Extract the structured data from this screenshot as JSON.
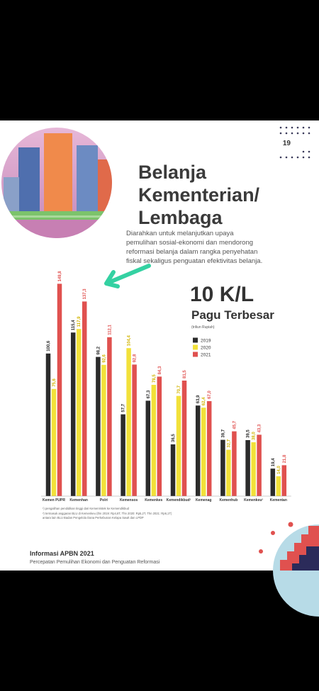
{
  "page": {
    "page_number": "19",
    "title_lines": [
      "Belanja",
      "Kementerian/",
      "Lembaga"
    ],
    "description_lines": [
      "Diarahkan untuk melanjutkan upaya",
      "pemulihan sosial-ekonomi dan mendorong",
      "reformasi belanja dalam rangka penyehatan",
      "fiskal sekaligus penguatan efektivitas belanja."
    ],
    "footnotes": [
      "¹) pengalihan pendidikan tinggi dari Kemenristek ke Kemendikbud",
      "²) termasuk anggaran BLU di Kemenkeu (thn 2019: Rp4,6T, Thn 2020: Rp5,2T, Thn 2021: Rp6,1T)",
      "antara lain BLU Badan Pengelola Dana Perkebunan Kelapa Sawit dan LPDP"
    ],
    "footer_title": "Informasi APBN 2021",
    "footer_subtitle": "Percepatan Pemulihan Ekonomi dan Penguatan Reformasi"
  },
  "chart_data": {
    "type": "bar",
    "title": "10 K/L",
    "subtitle": "Pagu Terbesar",
    "unit": "(triliun Rupiah)",
    "categories": [
      "Kemen PUPR",
      "Kemenhan",
      "Polri",
      "Kemensos",
      "Kemenkes",
      "Kemendikbud¹",
      "Kemenag",
      "Kemenhub",
      "Kemenkeu²",
      "Kementan"
    ],
    "series": [
      {
        "name": "2019",
        "color": "#2b2b2b",
        "values": [
          100.6,
          115.4,
          98.2,
          57.7,
          67.3,
          36.5,
          63.9,
          39.7,
          39.5,
          19.4
        ],
        "value_labels": [
          "100,6",
          "115,4",
          "98,2",
          "57,7",
          "67,3",
          "36,5",
          "63,9",
          "39,7",
          "39,5",
          "19,4"
        ]
      },
      {
        "name": "2020",
        "color": "#f2e13a",
        "values": [
          75.6,
          117.9,
          92.6,
          104.4,
          78.5,
          70.7,
          62.4,
          32.7,
          38.0,
          14.0
        ],
        "value_labels": [
          "75,6",
          "117,9",
          "92,6",
          "104,4",
          "78,5",
          "70,7",
          "62,4",
          "32,7",
          "38,0",
          "14,0"
        ]
      },
      {
        "name": "2021",
        "color": "#e0514f",
        "values": [
          149.8,
          137.3,
          112.1,
          92.8,
          84.3,
          81.5,
          67.0,
          45.7,
          43.3,
          21.8
        ],
        "value_labels": [
          "149,8",
          "137,3",
          "112,1",
          "92,8",
          "84,3",
          "81,5",
          "67,0",
          "45,7",
          "43,3",
          "21,8"
        ]
      }
    ],
    "legend": "right"
  }
}
